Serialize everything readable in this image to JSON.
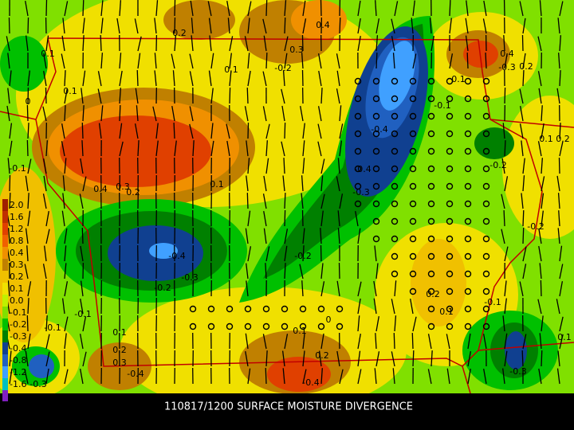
{
  "map": {
    "title": "110817/1200 SURFACE MOISTURE DIVERGENCE",
    "legend": {
      "labels": [
        "2.0",
        "1.6",
        "1.2",
        "0.8",
        "0.4",
        "0.3",
        "0.2",
        "0.1",
        "0.0",
        "-0.1",
        "-0.2",
        "-0.3",
        "-0.4",
        "-0.8",
        "-1.2",
        "-1.6"
      ],
      "colors": [
        "#a02000",
        "#c03000",
        "#e04000",
        "#f06000",
        "#f09000",
        "#c08000",
        "#f0c000",
        "#f0e000",
        "#c0f000",
        "#80e000",
        "#00c000",
        "#008000",
        "#104090",
        "#2060c0",
        "#40a0ff",
        "#00c0c0"
      ]
    },
    "contour_labels": [
      "0.2",
      "0.4",
      "0.3",
      "0.1",
      "-0.2",
      "0.1",
      "0.1",
      "0",
      "0.4",
      "-0.3",
      "0.2",
      "0.1",
      "-0.1",
      "-0.4",
      "-0.4",
      "-0.3",
      "-0.2",
      "-0.1",
      "0.4",
      "0.3",
      "0.2",
      "0.1",
      "-0.4",
      "-0.3",
      "-0.2",
      "-0.2",
      "-0.1",
      "-0.1",
      "0.1",
      "0.2",
      "0.3",
      "-0.4",
      "0.1",
      "0",
      "0.2",
      "-0.4",
      "0.2",
      "0.1",
      "-0.2",
      "-0.1",
      "0.1",
      "-0.3",
      "0.1",
      "0.2",
      "-0.3"
    ]
  }
}
